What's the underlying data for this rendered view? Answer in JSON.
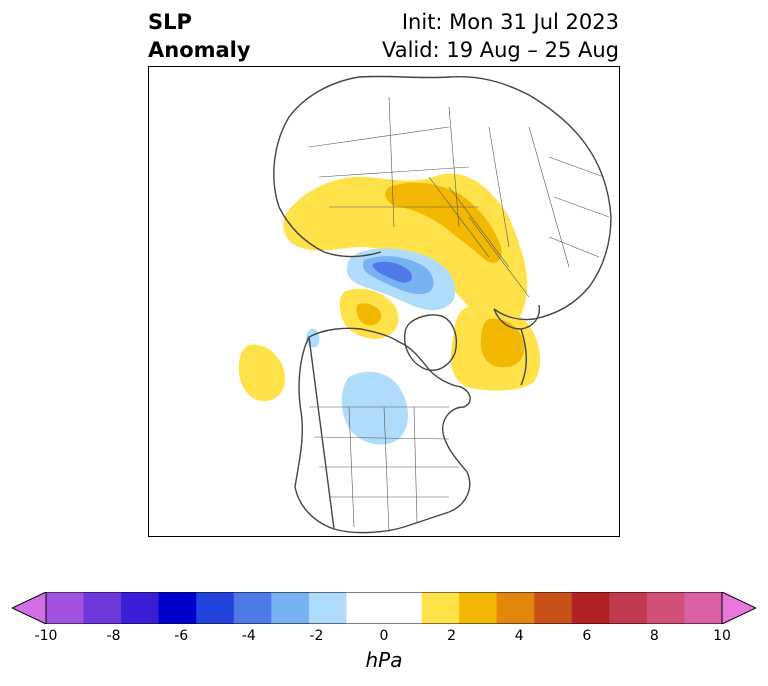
{
  "header": {
    "title_line1": "SLP",
    "title_line2": "Anomaly",
    "init_text": "Init: Mon 31 Jul 2023",
    "valid_text": "Valid: 19 Aug – 25 Aug"
  },
  "colorbar": {
    "unit": "hPa",
    "ticks": [
      "-10",
      "-8",
      "-6",
      "-4",
      "-2",
      "0",
      "2",
      "4",
      "6",
      "8",
      "10"
    ],
    "colors": [
      "#d46ee6",
      "#a250e0",
      "#6c38dc",
      "#3a1ed6",
      "#0000cc",
      "#2244dd",
      "#4f79e6",
      "#78b2f2",
      "#b0dcfb",
      "#ffffff",
      "#ffffff",
      "#ffe24a",
      "#f2b700",
      "#e0870c",
      "#c85218",
      "#b22222",
      "#c23a52",
      "#d05078",
      "#d862a4",
      "#e878dc"
    ]
  },
  "map": {
    "anomaly_colors": {
      "positive_light": "#ffe24a",
      "positive_mid": "#f2b700",
      "negative_light": "#b0dcfb",
      "negative_mid": "#78b2f2",
      "negative_strong": "#4f79e6"
    }
  }
}
